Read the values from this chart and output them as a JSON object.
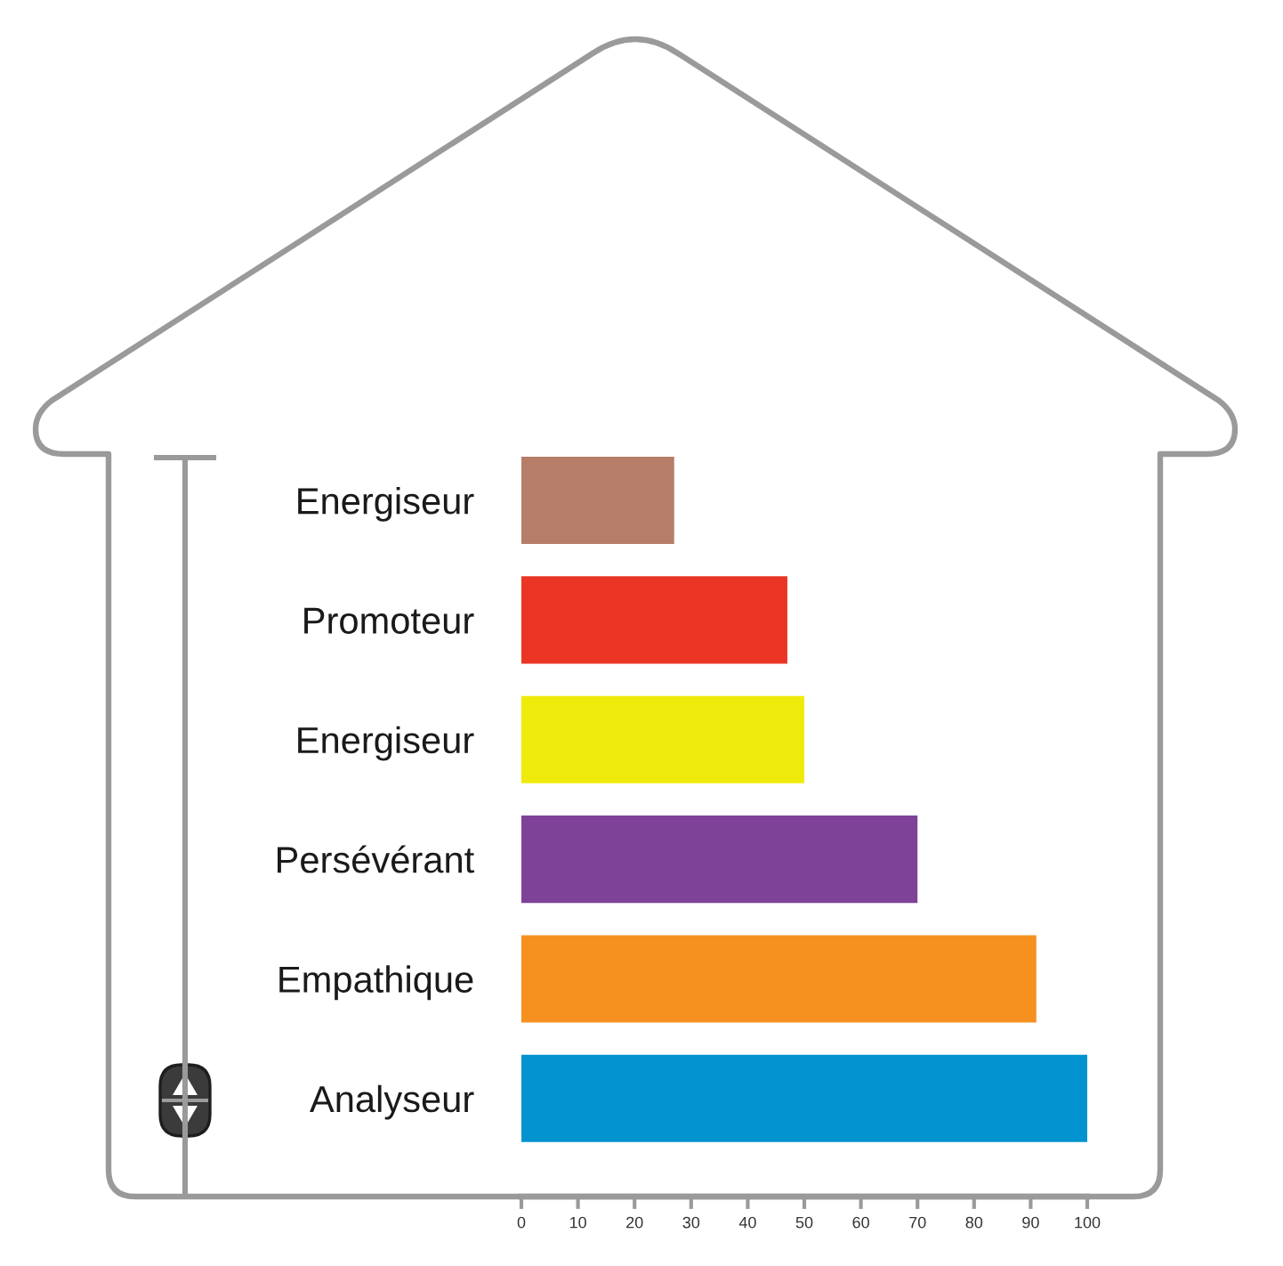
{
  "chart_data": {
    "type": "bar",
    "orientation": "horizontal",
    "categories": [
      "Energiseur",
      "Promoteur",
      "Energiseur",
      "Persévérant",
      "Empathique",
      "Analyseur"
    ],
    "values": [
      27,
      47,
      50,
      70,
      91,
      100
    ],
    "colors": [
      "#b67d69",
      "#ea3524",
      "#eeeb0a",
      "#7e4299",
      "#f6901f",
      "#0093cf"
    ],
    "xlim": [
      0,
      100
    ],
    "xticks": [
      0,
      10,
      20,
      30,
      40,
      50,
      60,
      70,
      80,
      90,
      100
    ]
  }
}
